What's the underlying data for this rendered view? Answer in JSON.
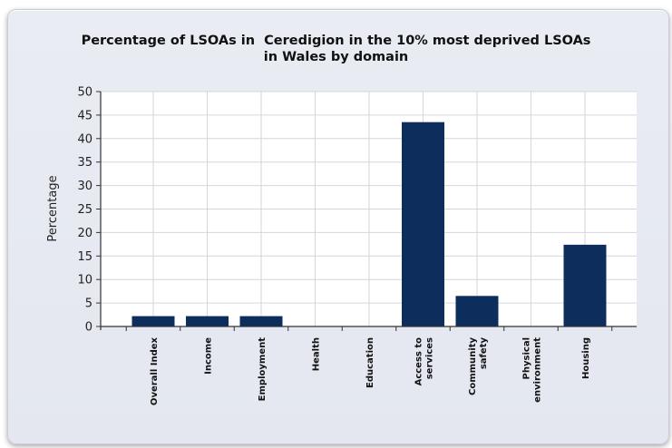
{
  "chart_data": {
    "type": "bar",
    "title_lines": [
      "Percentage of LSOAs in  Ceredigion in the 10% most deprived LSOAs",
      "in Wales by domain"
    ],
    "ylabel": "Percentage",
    "xlabel": "",
    "ylim": [
      0,
      50
    ],
    "yticks": [
      0,
      5,
      10,
      15,
      20,
      25,
      30,
      35,
      40,
      45,
      50
    ],
    "categories": [
      [
        "Overall Index"
      ],
      [
        "Income"
      ],
      [
        "Employment"
      ],
      [
        "Health"
      ],
      [
        "Education"
      ],
      [
        "Access to",
        "services"
      ],
      [
        "Community",
        "safety"
      ],
      [
        "Physical",
        "environment"
      ],
      [
        "Housing"
      ]
    ],
    "values": [
      2.2,
      2.2,
      2.2,
      0,
      0,
      43.5,
      6.5,
      0,
      17.4
    ],
    "bar_color": "#0d2d5c",
    "grid": true
  }
}
